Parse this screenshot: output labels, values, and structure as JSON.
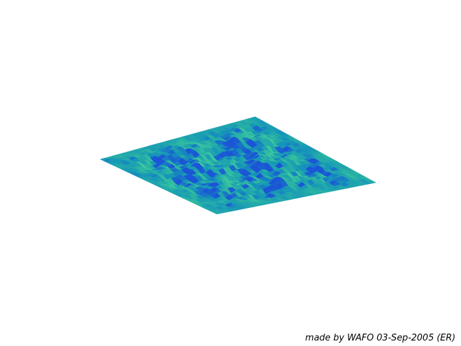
{
  "figure": {
    "credit_text": "made by WAFO 03-Sep-2005 (ER)",
    "colors": {
      "background": "#ffffff",
      "surface_light": "#29b3a3",
      "surface_mid": "#1596b8",
      "surface_dark": "#1a55d6",
      "surface_highlight": "#3cc8a0"
    }
  }
}
